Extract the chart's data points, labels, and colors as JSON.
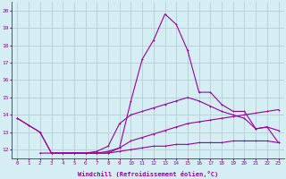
{
  "x": [
    0,
    1,
    2,
    3,
    4,
    5,
    6,
    7,
    8,
    9,
    10,
    11,
    12,
    13,
    14,
    15,
    16,
    17,
    18,
    19,
    20,
    21,
    22,
    23
  ],
  "line1": [
    13.8,
    13.4,
    13.0,
    11.8,
    11.8,
    11.8,
    11.8,
    11.8,
    11.9,
    12.1,
    14.8,
    17.2,
    18.3,
    19.8,
    19.2,
    17.7,
    15.3,
    15.3,
    14.6,
    14.2,
    14.2,
    13.2,
    13.3,
    12.4
  ],
  "line2": [
    13.8,
    13.4,
    13.0,
    11.8,
    11.8,
    11.8,
    11.8,
    11.9,
    12.2,
    13.5,
    14.0,
    14.2,
    14.4,
    14.6,
    14.8,
    15.0,
    14.8,
    14.5,
    14.2,
    14.0,
    13.8,
    13.2,
    13.3,
    13.1
  ],
  "line3": [
    null,
    null,
    null,
    null,
    11.8,
    11.8,
    11.8,
    11.8,
    11.8,
    12.1,
    12.5,
    12.7,
    12.9,
    13.1,
    13.3,
    13.5,
    13.6,
    13.7,
    13.8,
    13.9,
    14.0,
    14.1,
    14.2,
    14.3
  ],
  "line4": [
    null,
    null,
    11.8,
    11.8,
    11.8,
    11.8,
    11.8,
    11.8,
    11.8,
    11.9,
    12.0,
    12.1,
    12.2,
    12.2,
    12.3,
    12.3,
    12.4,
    12.4,
    12.4,
    12.5,
    12.5,
    12.5,
    12.5,
    12.4
  ],
  "color": "#990099",
  "bg_color": "#d4eef4",
  "grid_color": "#b0c8d0",
  "xlabel": "Windchill (Refroidissement éolien,°C)",
  "ylim": [
    11.5,
    20.5
  ],
  "xlim": [
    -0.5,
    23.5
  ],
  "yticks": [
    12,
    13,
    14,
    15,
    16,
    17,
    18,
    19,
    20
  ],
  "xticks": [
    0,
    1,
    2,
    3,
    4,
    5,
    6,
    7,
    8,
    9,
    10,
    11,
    12,
    13,
    14,
    15,
    16,
    17,
    18,
    19,
    20,
    21,
    22,
    23
  ]
}
